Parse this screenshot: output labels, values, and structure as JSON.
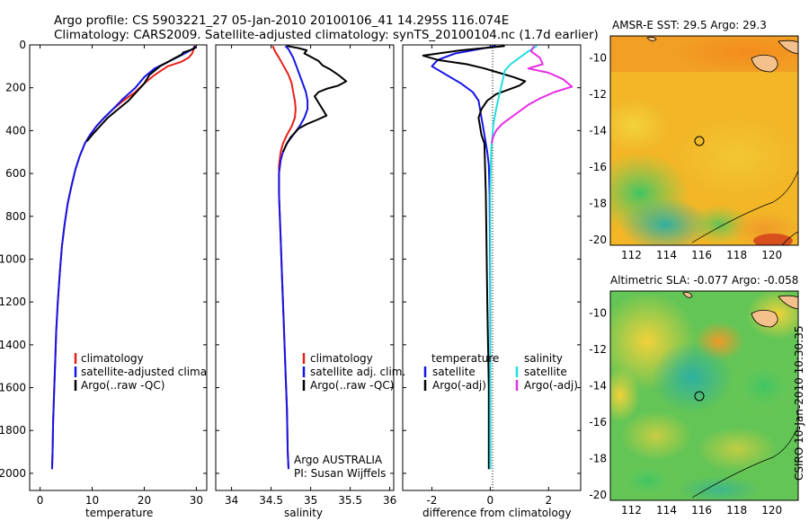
{
  "header": {
    "line1": "Argo profile: CS 5903221_27 05-Jan-2010 20100106_41 14.295S 116.074E",
    "line2": "Climatology: CARS2009. Satellite-adjusted climatology: synTS_20100104.nc (1.7d earlier)"
  },
  "footer": {
    "stamp": "CSIRO 10-Jan-2010 10:30:35"
  },
  "colors": {
    "clim": "#e8201a",
    "sat": "#1515e6",
    "argo": "#000000",
    "sat_sal": "#22dede",
    "argo_sal": "#e62ee6"
  },
  "chart_data": [
    {
      "type": "line",
      "id": "temperature",
      "xlabel": "temperature",
      "xlim": [
        -2,
        32
      ],
      "ylim": [
        0,
        2080
      ],
      "xticks": [
        "0",
        "10",
        "20",
        "30"
      ],
      "xtick_values": [
        0,
        10,
        20,
        30
      ],
      "yticks": [
        "0",
        "200",
        "400",
        "600",
        "800",
        "1000",
        "1200",
        "1400",
        "1600",
        "1800",
        "2000"
      ],
      "ytick_values": [
        0,
        200,
        400,
        600,
        800,
        1000,
        1200,
        1400,
        1600,
        1800,
        2000
      ],
      "legend": [
        "climatology",
        "satellite-adjusted climatology",
        "Argo(..raw -QC)"
      ],
      "series": [
        {
          "name": "climatology",
          "color": "clim",
          "x": [
            29.6,
            29.5,
            29.2,
            28.5,
            27.0,
            24.5,
            22.0,
            20.0,
            18.3,
            16.0,
            14.0,
            12.3,
            10.8,
            9.6,
            8.6,
            7.6,
            6.8,
            6.0,
            5.3,
            4.7,
            4.2,
            3.8,
            3.4,
            3.1,
            2.9,
            2.7,
            2.5,
            2.4,
            2.3
          ],
          "y": [
            5,
            20,
            40,
            60,
            80,
            100,
            140,
            180,
            220,
            260,
            300,
            340,
            380,
            420,
            460,
            520,
            580,
            660,
            740,
            840,
            940,
            1060,
            1200,
            1340,
            1480,
            1620,
            1760,
            1900,
            1980
          ]
        },
        {
          "name": "satellite-adjusted climatology",
          "color": "sat",
          "x": [
            29.8,
            29.5,
            28.5,
            27.0,
            24.5,
            22.0,
            20.0,
            18.3,
            16.0,
            14.0,
            12.3,
            10.8,
            9.6,
            8.6,
            7.6,
            6.8,
            6.0,
            5.3,
            4.7,
            4.2,
            3.8,
            3.4,
            3.1,
            2.9,
            2.7,
            2.5,
            2.4,
            2.3
          ],
          "y": [
            5,
            15,
            30,
            50,
            80,
            110,
            150,
            200,
            250,
            300,
            340,
            380,
            420,
            460,
            520,
            580,
            660,
            740,
            840,
            940,
            1060,
            1200,
            1340,
            1480,
            1620,
            1760,
            1900,
            1980
          ]
        },
        {
          "name": "Argo(..raw -QC)",
          "color": "argo",
          "x": [
            29.8,
            29.7,
            28.8,
            27.5,
            27.2,
            26.0,
            24.5,
            23.0,
            21.0,
            20.0,
            18.5,
            17.0,
            15.0,
            13.0,
            11.5,
            10.0,
            9.0
          ],
          "y": [
            5,
            15,
            25,
            35,
            45,
            60,
            80,
            100,
            140,
            180,
            220,
            260,
            300,
            340,
            380,
            420,
            450
          ]
        }
      ]
    },
    {
      "type": "line",
      "id": "salinity",
      "xlabel": "salinity",
      "xlim": [
        33.8,
        36.05
      ],
      "ylim": [
        0,
        2080
      ],
      "xticks": [
        "34",
        "34.5",
        "35",
        "35.5",
        "36"
      ],
      "xtick_values": [
        34,
        34.5,
        35,
        35.5,
        36
      ],
      "legend": [
        "climatology",
        "satellite adj. clim.",
        "Argo(..raw -QC)"
      ],
      "annotation": [
        "Argo AUSTRALIA",
        "PI: Susan Wijffels"
      ],
      "series": [
        {
          "name": "climatology",
          "color": "clim",
          "x": [
            34.52,
            34.55,
            34.6,
            34.66,
            34.72,
            34.76,
            34.78,
            34.8,
            34.81,
            34.8,
            34.76,
            34.7,
            34.65,
            34.62,
            34.6,
            34.6,
            34.62,
            34.64,
            34.66,
            34.68,
            34.7,
            34.71,
            34.72
          ],
          "y": [
            5,
            30,
            60,
            100,
            140,
            180,
            220,
            260,
            300,
            340,
            380,
            420,
            460,
            500,
            560,
            700,
            900,
            1100,
            1300,
            1500,
            1700,
            1900,
            1980
          ]
        },
        {
          "name": "satellite adj. clim.",
          "color": "sat",
          "x": [
            34.68,
            34.72,
            34.75,
            34.78,
            34.82,
            34.86,
            34.9,
            34.94,
            34.96,
            34.96,
            34.92,
            34.86,
            34.78,
            34.7,
            34.65,
            34.62,
            34.6,
            34.6,
            34.62,
            34.64,
            34.66,
            34.68,
            34.7,
            34.71,
            34.72
          ],
          "y": [
            5,
            20,
            40,
            60,
            100,
            140,
            180,
            220,
            260,
            300,
            340,
            380,
            420,
            460,
            500,
            540,
            600,
            700,
            900,
            1100,
            1300,
            1500,
            1700,
            1900,
            1980
          ]
        },
        {
          "name": "Argo(..raw -QC)",
          "color": "argo",
          "x": [
            34.7,
            34.85,
            34.95,
            34.92,
            35.0,
            35.1,
            35.15,
            35.25,
            35.35,
            35.45,
            35.35,
            35.2,
            35.1,
            35.05,
            35.1,
            35.15,
            35.2,
            35.08,
            34.95,
            34.85,
            34.8,
            34.75,
            34.7,
            34.65
          ],
          "y": [
            5,
            15,
            25,
            40,
            55,
            75,
            95,
            115,
            140,
            170,
            190,
            205,
            220,
            240,
            270,
            300,
            330,
            350,
            370,
            390,
            410,
            430,
            460,
            500
          ]
        }
      ]
    },
    {
      "type": "line",
      "id": "difference",
      "xlabel": "difference from climatology",
      "xlim": [
        -3,
        3.1
      ],
      "ylim": [
        0,
        2080
      ],
      "xticks": [
        "-2",
        "0",
        "2"
      ],
      "xtick_values": [
        -2,
        0,
        2
      ],
      "legend_groups": [
        {
          "title": "temperature",
          "items": [
            "satellite",
            "Argo(-adj)"
          ]
        },
        {
          "title": "salinity",
          "items": [
            "satellite",
            "Argo(-adj)"
          ]
        }
      ],
      "series": [
        {
          "name": "temperature satellite",
          "color": "sat",
          "x": [
            0.2,
            -0.4,
            -1.2,
            -1.8,
            -2.0,
            -1.5,
            -1.0,
            -0.6,
            -0.4,
            -0.35,
            -0.3,
            -0.25,
            -0.2,
            -0.15,
            -0.1,
            -0.05,
            -0.02,
            0.0,
            0.0
          ],
          "y": [
            5,
            20,
            40,
            70,
            100,
            140,
            180,
            220,
            260,
            300,
            340,
            380,
            420,
            460,
            500,
            560,
            700,
            1200,
            1980
          ]
        },
        {
          "name": "temperature Argo(-adj)",
          "color": "argo",
          "x": [
            0.5,
            -1.0,
            -2.3,
            -1.8,
            -0.8,
            -0.2,
            0.3,
            0.8,
            1.2,
            1.0,
            0.6,
            0.2,
            -0.1,
            -0.3,
            -0.4,
            -0.35,
            -0.3,
            -0.2,
            -0.15,
            -0.1,
            -0.05,
            -0.05
          ],
          "y": [
            5,
            25,
            50,
            70,
            90,
            110,
            130,
            150,
            170,
            190,
            210,
            230,
            260,
            300,
            340,
            380,
            420,
            460,
            700,
            1200,
            1600,
            1980
          ]
        },
        {
          "name": "salinity satellite",
          "color": "sat_sal",
          "x": [
            1.6,
            1.3,
            1.0,
            0.7,
            0.5,
            0.45,
            0.4,
            0.35,
            0.3,
            0.25,
            0.2,
            0.15,
            0.1,
            0.08,
            0.05,
            0.03,
            0.0,
            0.0
          ],
          "y": [
            5,
            30,
            60,
            90,
            120,
            150,
            180,
            210,
            240,
            270,
            300,
            340,
            380,
            420,
            460,
            500,
            700,
            1980
          ]
        },
        {
          "name": "salinity Argo(-adj)",
          "color": "argo_sal",
          "x": [
            1.5,
            1.4,
            1.7,
            1.8,
            1.3,
            2.0,
            2.5,
            2.8,
            2.2,
            1.7,
            1.3,
            1.0,
            0.7,
            0.4,
            0.2,
            0.1,
            0.05
          ],
          "y": [
            5,
            30,
            60,
            90,
            110,
            130,
            160,
            195,
            220,
            250,
            280,
            310,
            340,
            370,
            400,
            430,
            460
          ]
        }
      ]
    },
    {
      "type": "heatmap",
      "id": "sst_map",
      "title": "AMSR-E SST: 29.5 Argo: 29.3",
      "xlim": [
        110.8,
        121.5
      ],
      "ylim": [
        -20.3,
        -8.8
      ],
      "xticks": [
        "112",
        "114",
        "116",
        "118",
        "120"
      ],
      "xtick_values": [
        112,
        114,
        116,
        118,
        120
      ],
      "yticks": [
        "-10",
        "-12",
        "-14",
        "-16",
        "-18",
        "-20"
      ],
      "ytick_values": [
        -10,
        -12,
        -14,
        -16,
        -18,
        -20
      ],
      "marker": {
        "lon": 116.074,
        "lat": -14.295
      }
    },
    {
      "type": "heatmap",
      "id": "sla_map",
      "title": "Altimetric SLA: -0.077 Argo: -0.058",
      "xlim": [
        110.8,
        121.5
      ],
      "ylim": [
        -20.3,
        -8.8
      ],
      "xticks": [
        "112",
        "114",
        "116",
        "118",
        "120"
      ],
      "xtick_values": [
        112,
        114,
        116,
        118,
        120
      ],
      "yticks": [
        "-10",
        "-12",
        "-14",
        "-16",
        "-18",
        "-20"
      ],
      "ytick_values": [
        -10,
        -12,
        -14,
        -16,
        -18,
        -20
      ],
      "marker": {
        "lon": 116.074,
        "lat": -14.295
      }
    }
  ]
}
